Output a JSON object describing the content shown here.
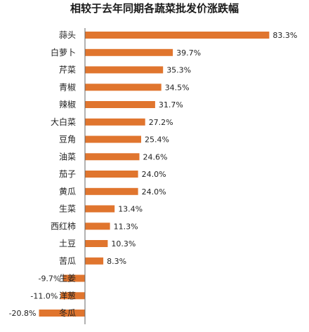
{
  "colors": {
    "bar": "#e0752e",
    "axis": "#666666",
    "background": "#ffffff"
  },
  "chart_data": {
    "type": "bar",
    "orientation": "horizontal",
    "title": "相较于去年同期各蔬菜批发价涨跌幅",
    "xlabel": "",
    "ylabel": "",
    "unit": "%",
    "grid": false,
    "legend": "none",
    "xlim": [
      -25,
      85
    ],
    "categories": [
      "蒜头",
      "白萝卜",
      "芹菜",
      "青椒",
      "辣椒",
      "大白菜",
      "豆角",
      "油菜",
      "茄子",
      "黄瓜",
      "生菜",
      "西红柿",
      "土豆",
      "苦瓜",
      "生姜",
      "洋葱",
      "冬瓜"
    ],
    "values": [
      83.3,
      39.7,
      35.3,
      34.5,
      31.7,
      27.2,
      25.4,
      24.6,
      24.0,
      24.0,
      13.4,
      11.3,
      10.3,
      8.3,
      -9.7,
      -11.0,
      -20.8
    ],
    "value_labels": [
      "83.3%",
      "39.7%",
      "35.3%",
      "34.5%",
      "31.7%",
      "27.2%",
      "25.4%",
      "24.6%",
      "24.0%",
      "24.0%",
      "13.4%",
      "11.3%",
      "10.3%",
      "8.3%",
      "-9.7%",
      "-11.0%",
      "-20.8%"
    ]
  }
}
